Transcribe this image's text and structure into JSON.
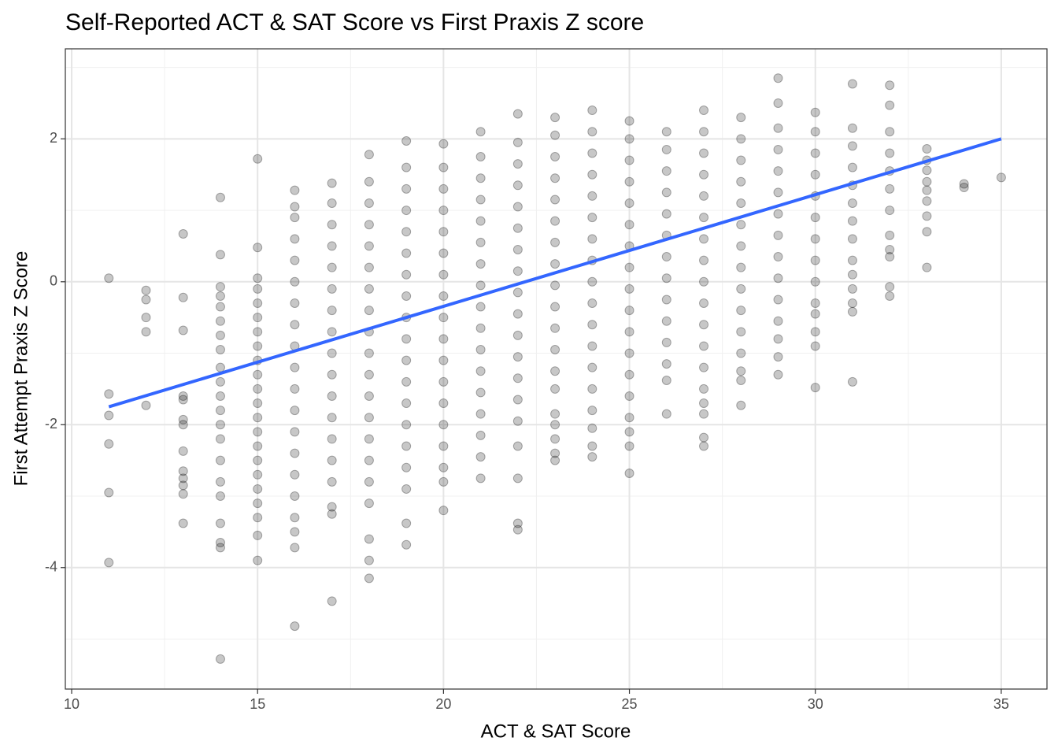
{
  "chart_data": {
    "type": "scatter",
    "title": "Self-Reported ACT & SAT Score vs First Praxis Z score",
    "x_label": "ACT & SAT Score",
    "y_label": "First Attempt Praxis Z Score",
    "color": "#000000",
    "xlim": [
      9.83,
      36.23
    ],
    "ylim": [
      -5.7,
      3.26
    ],
    "xticks": [
      10,
      15,
      20,
      25,
      30,
      35
    ],
    "yticks": [
      -4,
      -2,
      0,
      2
    ],
    "grid": true,
    "x": [
      11,
      11,
      11,
      11,
      11,
      11,
      12,
      12,
      12,
      12,
      12,
      13,
      13,
      13,
      13,
      13,
      13,
      13,
      13,
      13,
      13,
      13,
      13,
      13,
      14,
      14,
      14,
      14,
      14,
      14,
      14,
      14,
      14,
      14,
      14,
      14,
      14,
      14,
      14,
      14,
      14,
      14,
      14,
      14,
      14,
      15,
      15,
      15,
      15,
      15,
      15,
      15,
      15,
      15,
      15,
      15,
      15,
      15,
      15,
      15,
      15,
      15,
      15,
      15,
      15,
      15,
      15,
      16,
      16,
      16,
      16,
      16,
      16,
      16,
      16,
      16,
      16,
      16,
      16,
      16,
      16,
      16,
      16,
      16,
      16,
      16,
      16,
      17,
      17,
      17,
      17,
      17,
      17,
      17,
      17,
      17,
      17,
      17,
      17,
      17,
      17,
      17,
      17,
      17,
      17,
      18,
      18,
      18,
      18,
      18,
      18,
      18,
      18,
      18,
      18,
      18,
      18,
      18,
      18,
      18,
      18,
      18,
      18,
      18,
      18,
      19,
      19,
      19,
      19,
      19,
      19,
      19,
      19,
      19,
      19,
      19,
      19,
      19,
      19,
      19,
      19,
      19,
      19,
      19,
      20,
      20,
      20,
      20,
      20,
      20,
      20,
      20,
      20,
      20,
      20,
      20,
      20,
      20,
      20,
      20,
      20,
      20,
      21,
      21,
      21,
      21,
      21,
      21,
      21,
      21,
      21,
      21,
      21,
      21,
      21,
      21,
      21,
      21,
      21,
      22,
      22,
      22,
      22,
      22,
      22,
      22,
      22,
      22,
      22,
      22,
      22,
      22,
      22,
      22,
      22,
      22,
      22,
      22,
      23,
      23,
      23,
      23,
      23,
      23,
      23,
      23,
      23,
      23,
      23,
      23,
      23,
      23,
      23,
      23,
      23,
      23,
      23,
      24,
      24,
      24,
      24,
      24,
      24,
      24,
      24,
      24,
      24,
      24,
      24,
      24,
      24,
      24,
      24,
      24,
      24,
      25,
      25,
      25,
      25,
      25,
      25,
      25,
      25,
      25,
      25,
      25,
      25,
      25,
      25,
      25,
      25,
      25,
      25,
      26,
      26,
      26,
      26,
      26,
      26,
      26,
      26,
      26,
      26,
      26,
      26,
      26,
      26,
      27,
      27,
      27,
      27,
      27,
      27,
      27,
      27,
      27,
      27,
      27,
      27,
      27,
      27,
      27,
      27,
      27,
      27,
      28,
      28,
      28,
      28,
      28,
      28,
      28,
      28,
      28,
      28,
      28,
      28,
      28,
      28,
      28,
      29,
      29,
      29,
      29,
      29,
      29,
      29,
      29,
      29,
      29,
      29,
      29,
      29,
      29,
      29,
      30,
      30,
      30,
      30,
      30,
      30,
      30,
      30,
      30,
      30,
      30,
      30,
      30,
      30,
      31,
      31,
      31,
      31,
      31,
      31,
      31,
      31,
      31,
      31,
      31,
      31,
      31,
      31,
      32,
      32,
      32,
      32,
      32,
      32,
      32,
      32,
      32,
      32,
      32,
      32,
      33,
      33,
      33,
      33,
      33,
      33,
      33,
      33,
      33,
      34,
      34,
      35
    ],
    "values": [
      0.05,
      -1.57,
      -1.87,
      -2.27,
      -2.95,
      -3.93,
      -0.12,
      -0.25,
      -0.5,
      -0.7,
      -1.73,
      0.67,
      -0.22,
      -0.68,
      -1.6,
      -1.65,
      -1.93,
      -2.0,
      -2.37,
      -2.65,
      -2.75,
      -2.85,
      -2.97,
      -3.38,
      1.18,
      0.38,
      -0.07,
      -0.2,
      -0.35,
      -0.55,
      -0.75,
      -0.95,
      -1.2,
      -1.4,
      -1.6,
      -1.8,
      -2.0,
      -2.2,
      -2.5,
      -2.8,
      -3.0,
      -3.38,
      -3.65,
      -3.72,
      -5.28,
      1.72,
      0.48,
      0.05,
      -0.1,
      -0.3,
      -0.5,
      -0.7,
      -0.9,
      -1.1,
      -1.3,
      -1.5,
      -1.7,
      -1.9,
      -2.1,
      -2.3,
      -2.5,
      -2.7,
      -2.9,
      -3.1,
      -3.3,
      -3.55,
      -3.9,
      1.28,
      1.05,
      0.9,
      0.6,
      0.3,
      0.0,
      -0.3,
      -0.6,
      -0.9,
      -1.2,
      -1.5,
      -1.8,
      -2.1,
      -2.4,
      -2.7,
      -3.0,
      -3.3,
      -3.5,
      -3.72,
      -4.82,
      1.38,
      1.1,
      0.8,
      0.5,
      0.2,
      -0.1,
      -0.4,
      -0.7,
      -1.0,
      -1.3,
      -1.6,
      -1.9,
      -2.2,
      -2.5,
      -2.8,
      -3.15,
      -3.25,
      -4.47,
      1.78,
      1.4,
      1.1,
      0.8,
      0.5,
      0.2,
      -0.1,
      -0.4,
      -0.7,
      -1.0,
      -1.3,
      -1.6,
      -1.9,
      -2.2,
      -2.5,
      -2.8,
      -3.1,
      -3.6,
      -3.9,
      -4.15,
      1.97,
      1.6,
      1.3,
      1.0,
      0.7,
      0.4,
      0.1,
      -0.2,
      -0.5,
      -0.8,
      -1.1,
      -1.4,
      -1.7,
      -2.0,
      -2.3,
      -2.6,
      -2.9,
      -3.38,
      -3.68,
      1.93,
      1.6,
      1.3,
      1.0,
      0.7,
      0.4,
      0.1,
      -0.2,
      -0.5,
      -0.8,
      -1.1,
      -1.4,
      -1.7,
      -2.0,
      -2.3,
      -2.6,
      -2.8,
      -3.2,
      2.1,
      1.75,
      1.45,
      1.15,
      0.85,
      0.55,
      0.25,
      -0.05,
      -0.35,
      -0.65,
      -0.95,
      -1.25,
      -1.55,
      -1.85,
      -2.15,
      -2.45,
      -2.75,
      2.35,
      1.95,
      1.65,
      1.35,
      1.05,
      0.75,
      0.45,
      0.15,
      -0.15,
      -0.45,
      -0.75,
      -1.05,
      -1.35,
      -1.65,
      -1.95,
      -2.3,
      -2.75,
      -3.38,
      -3.47,
      2.3,
      2.05,
      1.75,
      1.45,
      1.15,
      0.85,
      0.55,
      0.25,
      -0.05,
      -0.35,
      -0.65,
      -0.95,
      -1.25,
      -1.5,
      -1.85,
      -2.0,
      -2.2,
      -2.4,
      -2.5,
      2.4,
      2.1,
      1.8,
      1.5,
      1.2,
      0.9,
      0.6,
      0.3,
      0.0,
      -0.3,
      -0.6,
      -0.9,
      -1.2,
      -1.5,
      -1.8,
      -2.05,
      -2.3,
      -2.45,
      2.25,
      2.0,
      1.7,
      1.4,
      1.1,
      0.8,
      0.5,
      0.2,
      -0.1,
      -0.4,
      -0.7,
      -1.0,
      -1.3,
      -1.6,
      -1.9,
      -2.1,
      -2.3,
      -2.68,
      2.1,
      1.85,
      1.55,
      1.25,
      0.95,
      0.65,
      0.35,
      0.05,
      -0.25,
      -0.55,
      -0.85,
      -1.15,
      -1.38,
      -1.85,
      2.4,
      2.1,
      1.8,
      1.5,
      1.2,
      0.9,
      0.6,
      0.3,
      0.0,
      -0.3,
      -0.6,
      -0.9,
      -1.2,
      -1.5,
      -1.7,
      -1.85,
      -2.18,
      -2.3,
      2.3,
      2.0,
      1.7,
      1.4,
      1.1,
      0.8,
      0.5,
      0.2,
      -0.1,
      -0.4,
      -0.7,
      -1.0,
      -1.25,
      -1.38,
      -1.73,
      2.85,
      2.5,
      2.15,
      1.85,
      1.55,
      1.25,
      0.95,
      0.65,
      0.35,
      0.05,
      -0.25,
      -0.55,
      -0.8,
      -1.05,
      -1.3,
      2.37,
      2.1,
      1.8,
      1.5,
      1.2,
      0.9,
      0.6,
      0.3,
      0.0,
      -0.3,
      -0.45,
      -0.7,
      -0.9,
      -1.48,
      2.77,
      2.15,
      1.9,
      1.6,
      1.35,
      1.1,
      0.85,
      0.6,
      0.3,
      0.1,
      -0.1,
      -0.3,
      -0.42,
      -1.4,
      2.75,
      2.47,
      2.1,
      1.8,
      1.55,
      1.3,
      1.0,
      0.65,
      0.45,
      0.35,
      -0.07,
      -0.2,
      1.86,
      1.7,
      1.56,
      1.4,
      1.28,
      1.13,
      0.92,
      0.7,
      0.2,
      1.37,
      1.32,
      1.46
    ],
    "trend": {
      "x": [
        11,
        35
      ],
      "values": [
        -1.75,
        2.0
      ],
      "color": "#3366ff"
    }
  }
}
